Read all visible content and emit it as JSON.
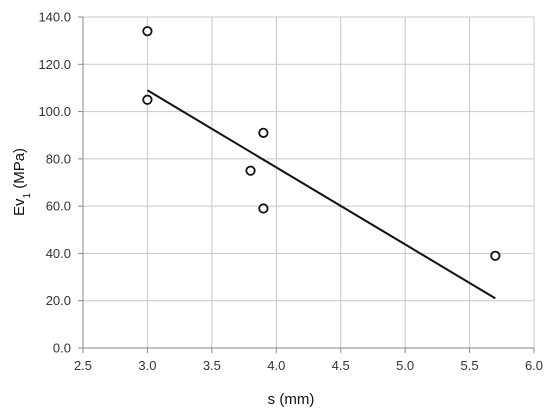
{
  "chart_data": {
    "type": "scatter",
    "xlabel": "s (mm)",
    "ylabel_main": "Ev",
    "ylabel_sub": "1",
    "ylabel_unit": " (MPa)",
    "xlim": [
      2.5,
      6.0
    ],
    "ylim": [
      0.0,
      140.0
    ],
    "x_ticks": [
      "2.5",
      "3.0",
      "3.5",
      "4.0",
      "4.5",
      "5.0",
      "5.5",
      "6.0"
    ],
    "y_ticks": [
      "0.0",
      "20.0",
      "40.0",
      "60.0",
      "80.0",
      "100.0",
      "120.0",
      "140.0"
    ],
    "grid": true,
    "points": [
      {
        "x": 3.0,
        "y": 134
      },
      {
        "x": 3.0,
        "y": 105
      },
      {
        "x": 3.9,
        "y": 91
      },
      {
        "x": 3.8,
        "y": 75
      },
      {
        "x": 3.9,
        "y": 59
      },
      {
        "x": 5.7,
        "y": 39
      }
    ],
    "trendline": {
      "x": [
        3.0,
        5.7
      ],
      "y": [
        109,
        21
      ]
    },
    "colors": {
      "grid": "#c8c8c8",
      "axis": "#888888",
      "marker": "#111111",
      "trend": "#111111"
    }
  }
}
